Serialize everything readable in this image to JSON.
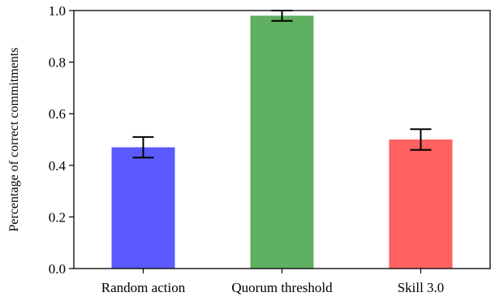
{
  "chart_data": {
    "type": "bar",
    "categories": [
      "Random action",
      "Quorum threshold",
      "Skill 3.0"
    ],
    "values": [
      0.47,
      0.98,
      0.5
    ],
    "error_low": [
      0.43,
      0.96,
      0.46
    ],
    "error_high": [
      0.51,
      1.0,
      0.54
    ],
    "colors": [
      "#5b5bff",
      "#5fb060",
      "#ff6060"
    ],
    "title": "",
    "xlabel": "",
    "ylabel": "Percentage of correct commitments",
    "ylim": [
      0,
      1.0
    ],
    "yticks": [
      "0.0",
      "0.2",
      "0.4",
      "0.6",
      "0.8",
      "1.0"
    ],
    "grid": false
  }
}
